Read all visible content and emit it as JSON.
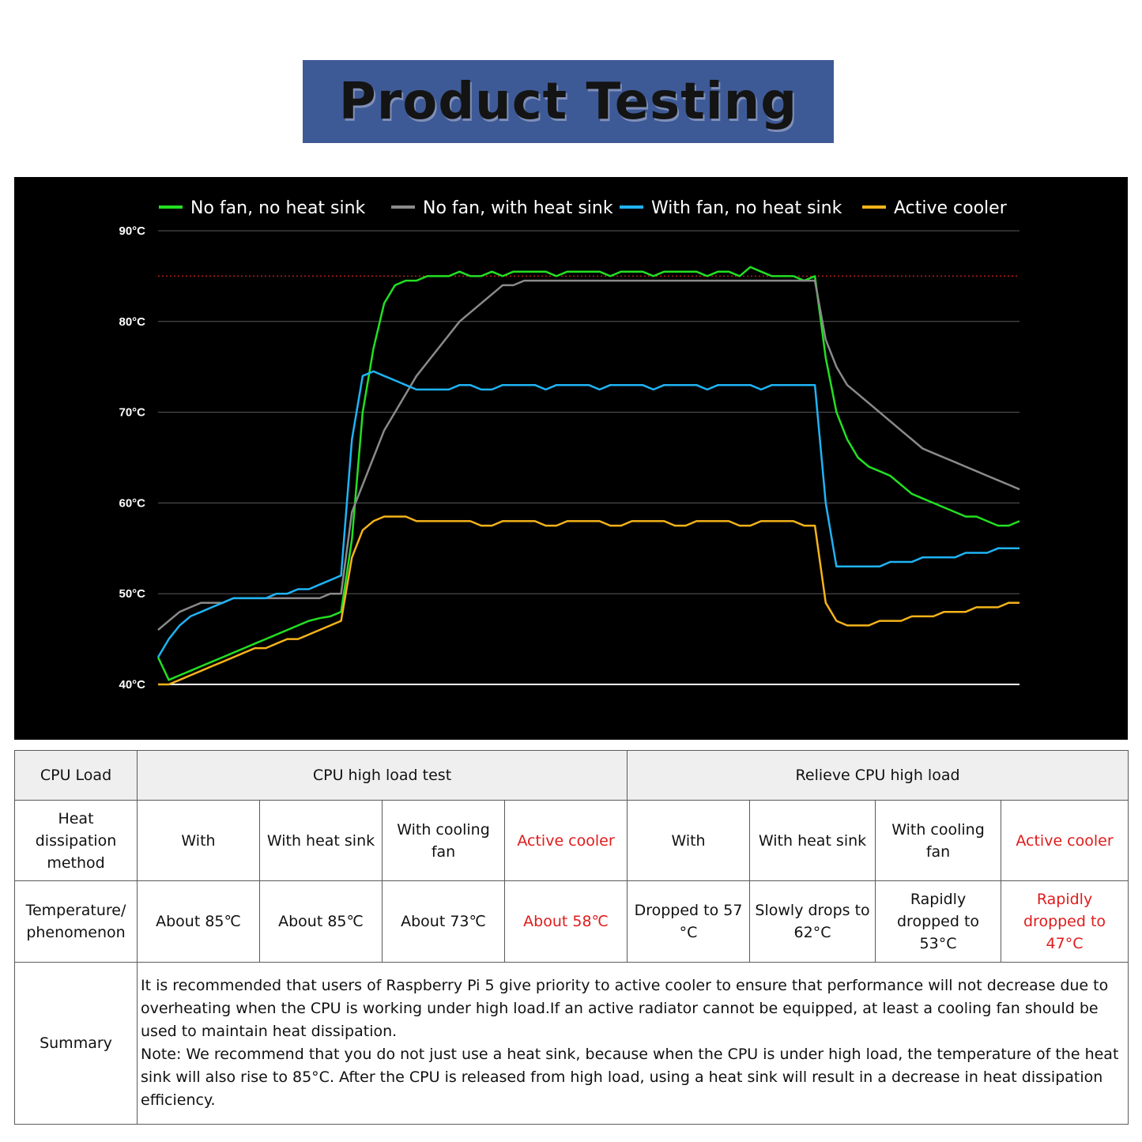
{
  "title": "Product Testing",
  "chart_data": {
    "type": "line",
    "title": "",
    "xlabel": "",
    "ylabel": "",
    "y_unit": "°C",
    "ylim": [
      40,
      90
    ],
    "yticks": [
      {
        "value": 40,
        "label": "40°C"
      },
      {
        "value": 50,
        "label": "50°C"
      },
      {
        "value": 60,
        "label": "60°C"
      },
      {
        "value": 70,
        "label": "70°C"
      },
      {
        "value": 80,
        "label": "80°C"
      },
      {
        "value": 90,
        "label": "90°C"
      }
    ],
    "reference_line": {
      "value": 85,
      "style": "dotted",
      "color": "#d62020"
    },
    "grid": true,
    "legend_position": "top",
    "x": [
      0,
      5,
      10,
      15,
      20,
      25,
      30,
      35,
      40,
      45,
      50,
      55,
      60,
      65,
      70,
      75,
      80,
      85,
      90,
      95,
      100,
      105,
      110,
      115,
      120,
      125,
      130,
      135,
      140,
      145,
      150,
      155,
      160,
      165,
      170,
      175,
      180,
      185,
      190,
      195,
      200,
      205,
      210,
      215,
      220,
      225,
      230,
      235,
      240,
      245,
      250,
      255,
      260,
      265,
      270,
      275,
      280,
      285,
      290,
      295,
      300,
      305,
      310,
      315,
      320,
      325,
      330,
      335,
      340,
      345,
      350,
      355,
      360,
      365,
      370,
      375,
      380,
      385,
      390,
      395,
      400
    ],
    "series": [
      {
        "name": "No fan, no heat sink",
        "color": "#22e022",
        "values": [
          43,
          40.5,
          41,
          41.5,
          42,
          42.5,
          43,
          43.5,
          44,
          44.5,
          45,
          45.5,
          46,
          46.5,
          47,
          47.3,
          47.5,
          48,
          56,
          70,
          77,
          82,
          84,
          84.5,
          84.5,
          85,
          85,
          85,
          85.5,
          85,
          85,
          85.5,
          85,
          85.5,
          85.5,
          85.5,
          85.5,
          85,
          85.5,
          85.5,
          85.5,
          85.5,
          85,
          85.5,
          85.5,
          85.5,
          85,
          85.5,
          85.5,
          85.5,
          85.5,
          85,
          85.5,
          85.5,
          85,
          86,
          85.5,
          85,
          85,
          85,
          84.5,
          85,
          76,
          70,
          67,
          65,
          64,
          63.5,
          63,
          62,
          61,
          60.5,
          60,
          59.5,
          59,
          58.5,
          58.5,
          58,
          57.5,
          57.5,
          58
        ]
      },
      {
        "name": "No fan, with heat sink",
        "color": "#8a8a8a",
        "values": [
          46,
          47,
          48,
          48.5,
          49,
          49,
          49,
          49.5,
          49.5,
          49.5,
          49.5,
          49.5,
          49.5,
          49.5,
          49.5,
          49.5,
          50,
          50,
          59,
          62,
          65,
          68,
          70,
          72,
          74,
          75.5,
          77,
          78.5,
          80,
          81,
          82,
          83,
          84,
          84,
          84.5,
          84.5,
          84.5,
          84.5,
          84.5,
          84.5,
          84.5,
          84.5,
          84.5,
          84.5,
          84.5,
          84.5,
          84.5,
          84.5,
          84.5,
          84.5,
          84.5,
          84.5,
          84.5,
          84.5,
          84.5,
          84.5,
          84.5,
          84.5,
          84.5,
          84.5,
          84.5,
          84.5,
          78,
          75,
          73,
          72,
          71,
          70,
          69,
          68,
          67,
          66,
          65.5,
          65,
          64.5,
          64,
          63.5,
          63,
          62.5,
          62,
          61.5
        ]
      },
      {
        "name": "With fan, no heat sink",
        "color": "#1fb4f5",
        "values": [
          43,
          45,
          46.5,
          47.5,
          48,
          48.5,
          49,
          49.5,
          49.5,
          49.5,
          49.5,
          50,
          50,
          50.5,
          50.5,
          51,
          51.5,
          52,
          67,
          74,
          74.5,
          74,
          73.5,
          73,
          72.5,
          72.5,
          72.5,
          72.5,
          73,
          73,
          72.5,
          72.5,
          73,
          73,
          73,
          73,
          72.5,
          73,
          73,
          73,
          73,
          72.5,
          73,
          73,
          73,
          73,
          72.5,
          73,
          73,
          73,
          73,
          72.5,
          73,
          73,
          73,
          73,
          72.5,
          73,
          73,
          73,
          73,
          73,
          60,
          53,
          53,
          53,
          53,
          53,
          53.5,
          53.5,
          53.5,
          54,
          54,
          54,
          54,
          54.5,
          54.5,
          54.5,
          55,
          55,
          55
        ]
      },
      {
        "name": "Active cooler",
        "color": "#f5b31a",
        "values": [
          40,
          40,
          40.5,
          41,
          41.5,
          42,
          42.5,
          43,
          43.5,
          44,
          44,
          44.5,
          45,
          45,
          45.5,
          46,
          46.5,
          47,
          54,
          57,
          58,
          58.5,
          58.5,
          58.5,
          58,
          58,
          58,
          58,
          58,
          58,
          57.5,
          57.5,
          58,
          58,
          58,
          58,
          57.5,
          57.5,
          58,
          58,
          58,
          58,
          57.5,
          57.5,
          58,
          58,
          58,
          58,
          57.5,
          57.5,
          58,
          58,
          58,
          58,
          57.5,
          57.5,
          58,
          58,
          58,
          58,
          57.5,
          57.5,
          49,
          47,
          46.5,
          46.5,
          46.5,
          47,
          47,
          47,
          47.5,
          47.5,
          47.5,
          48,
          48,
          48,
          48.5,
          48.5,
          48.5,
          49,
          49
        ]
      }
    ]
  },
  "table": {
    "row1": {
      "label": "CPU Load",
      "high_load": "CPU high load test",
      "relieve": "Relieve CPU high load"
    },
    "row2": {
      "label": "Heat dissipation method",
      "cells": [
        "With",
        "With heat sink",
        "With cooling fan",
        "Active cooler",
        "With",
        "With heat sink",
        "With cooling fan",
        "Active cooler"
      ]
    },
    "row3": {
      "label": "Temperature/ phenomenon",
      "cells": [
        "About 85℃",
        "About 85℃",
        "About 73℃",
        "About 58℃",
        "Dropped to  57 °C",
        "Slowly  drops to  62°C",
        "Rapidly dropped to 53°C",
        "Rapidly dropped to 47°C"
      ]
    },
    "row4": {
      "label": "Summary",
      "paragraph1": "It is recommended that users of Raspberry Pi 5 give priority to active cooler to ensure that performance will not decrease due to overheating when the CPU is working under high load.If an active radiator cannot be equipped, at least a cooling fan should be used to maintain heat dissipation.",
      "paragraph2": "Note: We recommend that you do not just use a heat sink, because when the CPU is under high load, the temperature of the heat sink will also rise to 85°C. After the CPU is released from high load, using a heat sink will result in a decrease in heat dissipation efficiency."
    },
    "highlight_color": "#e01b1b"
  }
}
